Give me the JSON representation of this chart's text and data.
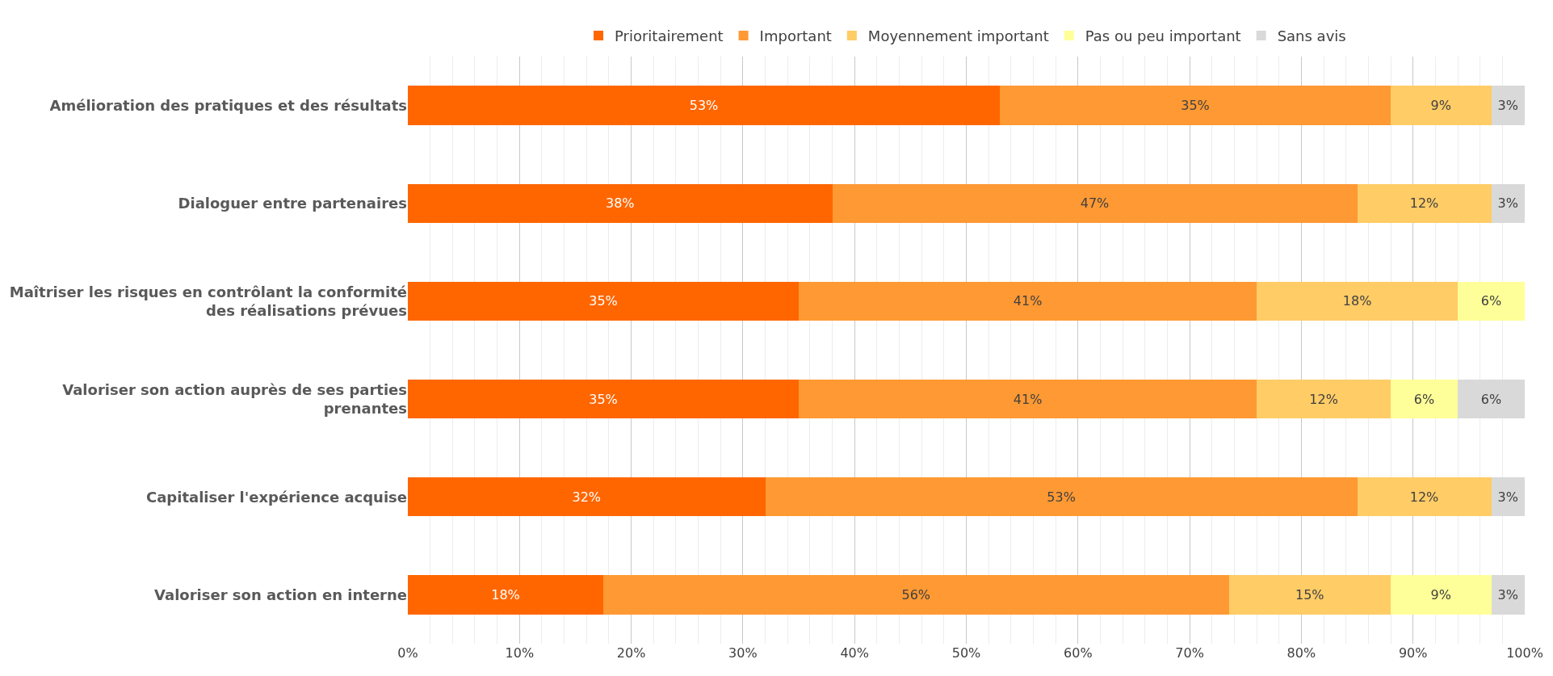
{
  "chart_data": {
    "type": "bar",
    "orientation": "horizontal",
    "stacked": true,
    "legend": "top",
    "grid": "x",
    "categories": [
      "Amélioration des pratiques et des résultats",
      "Dialoguer entre partenaires",
      "Maîtriser les risques en contrôlant la conformité des réalisations prévues",
      "Valoriser son action auprès de ses parties prenantes",
      "Capitaliser l'expérience acquise",
      "Valoriser son action en interne"
    ],
    "xlim": [
      0,
      100
    ],
    "xticks": [
      {
        "value": 0,
        "label": "0%"
      },
      {
        "value": 10,
        "label": "10%"
      },
      {
        "value": 20,
        "label": "20%"
      },
      {
        "value": 30,
        "label": "30%"
      },
      {
        "value": 40,
        "label": "40%"
      },
      {
        "value": 50,
        "label": "50%"
      },
      {
        "value": 60,
        "label": "60%"
      },
      {
        "value": 70,
        "label": "70%"
      },
      {
        "value": 80,
        "label": "80%"
      },
      {
        "value": 90,
        "label": "90%"
      },
      {
        "value": 100,
        "label": "100%"
      }
    ],
    "series": [
      {
        "name": "Prioritairement",
        "color": "#ff6600",
        "values": [
          53,
          38,
          35,
          35,
          32,
          17.5
        ],
        "value_labels": [
          "53%",
          "38%",
          "35%",
          "35%",
          "32%",
          "18%"
        ]
      },
      {
        "name": "Important",
        "color": "#ff9933",
        "values": [
          35,
          47,
          41,
          41,
          53,
          56
        ],
        "value_labels": [
          "35%",
          "47%",
          "41%",
          "41%",
          "53%",
          "56%"
        ]
      },
      {
        "name": "Moyennement important",
        "color": "#ffcc66",
        "values": [
          9,
          12,
          18,
          12,
          12,
          14.5
        ],
        "value_labels": [
          "9%",
          "12%",
          "18%",
          "12%",
          "12%",
          "15%"
        ]
      },
      {
        "name": "Pas ou peu important",
        "color": "#ffff99",
        "values": [
          null,
          null,
          6,
          6,
          null,
          9
        ],
        "value_labels": [
          null,
          null,
          "6%",
          "6%",
          null,
          "9%"
        ]
      },
      {
        "name": "Sans avis",
        "color": "#d9d9d9",
        "values": [
          3,
          3,
          null,
          6,
          3,
          3
        ],
        "value_labels": [
          "3%",
          "3%",
          null,
          "6%",
          "3%",
          "3%"
        ]
      }
    ]
  }
}
